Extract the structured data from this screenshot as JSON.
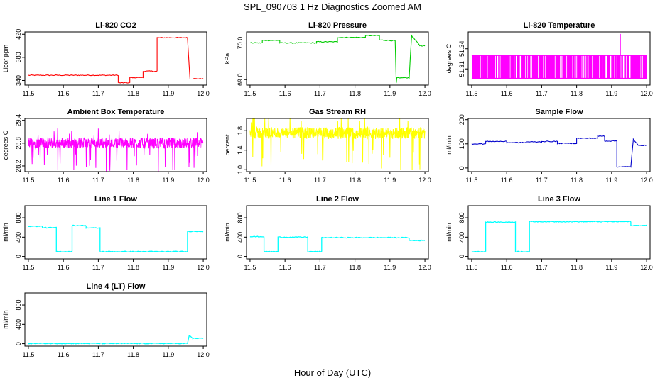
{
  "figure": {
    "title": "SPL_090703  1 Hz Diagnostics Zoomed AM",
    "xlabel": "Hour of Day (UTC)"
  },
  "chart_data": [
    {
      "type": "line",
      "title": "Li-820 CO2",
      "ylabel": "Licor ppm",
      "color": "#ff0000",
      "xlim": [
        11.49,
        12.01
      ],
      "ylim": [
        332,
        424
      ],
      "yticks": [
        "340",
        "380",
        "420"
      ],
      "ytick_values": [
        340,
        380,
        420
      ],
      "xticks": [
        "11.5",
        "11.6",
        "11.7",
        "11.8",
        "11.9",
        "12.0"
      ],
      "series": [
        {
          "x": [
            11.5,
            11.757,
            11.757,
            11.79,
            11.79,
            11.828,
            11.828,
            11.868,
            11.868,
            11.955,
            11.962,
            12.0
          ],
          "y": [
            349,
            349,
            336,
            336,
            345,
            345,
            356,
            356,
            414,
            414,
            343,
            343
          ]
        }
      ]
    },
    {
      "type": "line",
      "title": "Li-820 Pressure",
      "ylabel": "kPa",
      "color": "#00cc00",
      "xlim": [
        11.49,
        12.01
      ],
      "ylim": [
        68.85,
        70.3
      ],
      "yticks": [
        "69.0",
        "70.0"
      ],
      "ytick_values": [
        69.0,
        70.0
      ],
      "xticks": [
        "11.5",
        "11.6",
        "11.7",
        "11.8",
        "11.9",
        "12.0"
      ],
      "series": [
        {
          "x": [
            11.5,
            11.535,
            11.535,
            11.585,
            11.585,
            11.69,
            11.69,
            11.75,
            11.75,
            11.83,
            11.83,
            11.87,
            11.87,
            11.915,
            11.918,
            11.92,
            11.955,
            11.962,
            11.985,
            12.0
          ],
          "y": [
            70.0,
            70.0,
            70.07,
            70.07,
            70.0,
            70.0,
            70.03,
            70.03,
            70.15,
            70.15,
            70.2,
            70.2,
            70.08,
            70.06,
            68.9,
            69.05,
            69.05,
            70.2,
            69.93,
            69.92
          ]
        }
      ]
    },
    {
      "type": "line",
      "title": "Li-820 Temperature",
      "ylabel": "degrees C",
      "color": "#ff00ff",
      "xlim": [
        11.49,
        12.01
      ],
      "ylim": [
        51.286,
        51.365
      ],
      "yticks": [
        "51.31",
        "51.34"
      ],
      "ytick_values": [
        51.31,
        51.34
      ],
      "xticks": [
        "11.5",
        "11.6",
        "11.7",
        "11.8",
        "11.9",
        "12.0"
      ],
      "series": [
        {
          "x": [
            11.5,
            12.0
          ],
          "y": [
            51.296,
            51.33
          ]
        }
      ]
    },
    {
      "type": "line",
      "title": "Ambient Box Temperature",
      "ylabel": "degrees C",
      "color": "#ff00ff",
      "xlim": [
        11.49,
        12.01
      ],
      "ylim": [
        28.05,
        29.45
      ],
      "yticks": [
        "28.2",
        "28.8",
        "29.4"
      ],
      "ytick_values": [
        28.2,
        28.8,
        29.4
      ],
      "xticks": [
        "11.5",
        "11.6",
        "11.7",
        "11.8",
        "11.9",
        "12.0"
      ],
      "series": [
        {
          "x": [
            11.5,
            12.0
          ],
          "y": [
            28.8,
            29.0
          ]
        }
      ]
    },
    {
      "type": "line",
      "title": "Gas Stream RH",
      "ylabel": "percent",
      "color": "#ffff00",
      "xlim": [
        11.49,
        12.01
      ],
      "ylim": [
        0.96,
        2.05
      ],
      "yticks": [
        "1.0",
        "1.4",
        "1.8"
      ],
      "ytick_values": [
        1.0,
        1.4,
        1.8
      ],
      "xticks": [
        "11.5",
        "11.6",
        "11.7",
        "11.8",
        "11.9",
        "12.0"
      ],
      "series": [
        {
          "x": [
            11.5,
            12.0
          ],
          "y": [
            1.75,
            1.75
          ]
        }
      ]
    },
    {
      "type": "line",
      "title": "Sample Flow",
      "ylabel": "ml/min",
      "color": "#0000cc",
      "xlim": [
        11.49,
        12.01
      ],
      "ylim": [
        -15,
        205
      ],
      "yticks": [
        "0",
        "100",
        "200"
      ],
      "ytick_values": [
        0,
        100,
        200
      ],
      "xticks": [
        "11.5",
        "11.6",
        "11.7",
        "11.8",
        "11.9",
        "12.0"
      ],
      "series": [
        {
          "x": [
            11.5,
            11.54,
            11.54,
            11.6,
            11.6,
            11.655,
            11.655,
            11.7,
            11.7,
            11.745,
            11.745,
            11.8,
            11.8,
            11.86,
            11.86,
            11.88,
            11.88,
            11.915,
            11.915,
            11.955,
            11.962,
            11.975,
            12.0
          ],
          "y": [
            100,
            100,
            110,
            110,
            105,
            105,
            108,
            108,
            110,
            110,
            102,
            102,
            123,
            123,
            132,
            132,
            112,
            112,
            5,
            5,
            118,
            95,
            93
          ]
        }
      ]
    },
    {
      "type": "line",
      "title": "Line 1 Flow",
      "ylabel": "ml/min",
      "color": "#00ffff",
      "xlim": [
        11.49,
        12.01
      ],
      "ylim": [
        -50,
        1050
      ],
      "yticks": [
        "0",
        "400",
        "800"
      ],
      "ytick_values": [
        0,
        400,
        800
      ],
      "xticks": [
        "11.5",
        "11.6",
        "11.7",
        "11.8",
        "11.9",
        "12.0"
      ],
      "series": [
        {
          "x": [
            11.5,
            11.54,
            11.54,
            11.58,
            11.58,
            11.625,
            11.625,
            11.665,
            11.665,
            11.705,
            11.705,
            11.955,
            11.955,
            12.0
          ],
          "y": [
            625,
            625,
            595,
            595,
            100,
            100,
            640,
            640,
            590,
            590,
            100,
            100,
            520,
            520
          ]
        }
      ]
    },
    {
      "type": "line",
      "title": "Line 2 Flow",
      "ylabel": "ml/min",
      "color": "#00ffff",
      "xlim": [
        11.49,
        12.01
      ],
      "ylim": [
        -50,
        1050
      ],
      "yticks": [
        "0",
        "400",
        "800"
      ],
      "ytick_values": [
        0,
        400,
        800
      ],
      "xticks": [
        "11.5",
        "11.6",
        "11.7",
        "11.8",
        "11.9",
        "12.0"
      ],
      "series": [
        {
          "x": [
            11.5,
            11.54,
            11.54,
            11.58,
            11.58,
            11.665,
            11.665,
            11.705,
            11.705,
            11.955,
            11.955,
            12.0
          ],
          "y": [
            410,
            410,
            100,
            100,
            400,
            400,
            100,
            100,
            390,
            390,
            330,
            330
          ]
        }
      ]
    },
    {
      "type": "line",
      "title": "Line 3 Flow",
      "ylabel": "ml/min",
      "color": "#00ffff",
      "xlim": [
        11.49,
        12.01
      ],
      "ylim": [
        -50,
        1050
      ],
      "yticks": [
        "0",
        "400",
        "800"
      ],
      "ytick_values": [
        0,
        400,
        800
      ],
      "xticks": [
        "11.5",
        "11.6",
        "11.7",
        "11.8",
        "11.9",
        "12.0"
      ],
      "series": [
        {
          "x": [
            11.5,
            11.54,
            11.54,
            11.625,
            11.625,
            11.665,
            11.665,
            11.955,
            11.955,
            12.0
          ],
          "y": [
            100,
            100,
            710,
            710,
            100,
            100,
            720,
            720,
            640,
            640
          ]
        }
      ]
    },
    {
      "type": "line",
      "title": "Line 4 (LT) Flow",
      "ylabel": "ml/min",
      "color": "#00ffff",
      "xlim": [
        11.49,
        12.01
      ],
      "ylim": [
        -50,
        1050
      ],
      "yticks": [
        "0",
        "400",
        "800"
      ],
      "ytick_values": [
        0,
        400,
        800
      ],
      "xticks": [
        "11.5",
        "11.6",
        "11.7",
        "11.8",
        "11.9",
        "12.0"
      ],
      "series": [
        {
          "x": [
            11.5,
            11.955,
            11.96,
            11.97,
            12.0
          ],
          "y": [
            5,
            5,
            170,
            110,
            110
          ]
        }
      ]
    }
  ]
}
